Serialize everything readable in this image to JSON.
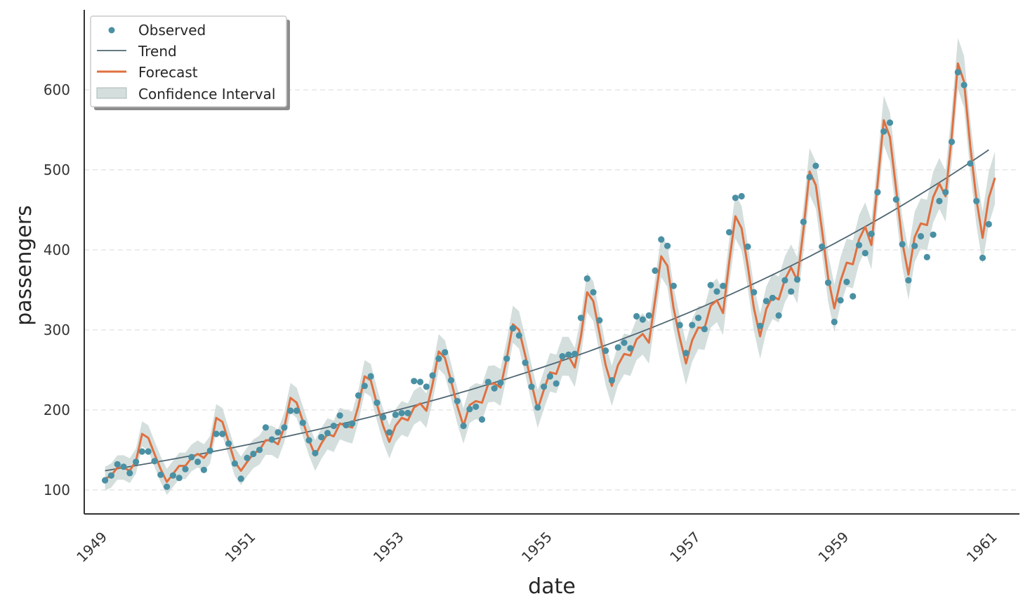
{
  "chart_data": {
    "type": "line",
    "xlabel": "date",
    "ylabel": "passengers",
    "xlim": [
      1948.72,
      1961.33
    ],
    "ylim": [
      70,
      700
    ],
    "x_ticks": [
      {
        "value": 1949,
        "label": "1949"
      },
      {
        "value": 1951,
        "label": "1951"
      },
      {
        "value": 1953,
        "label": "1953"
      },
      {
        "value": 1955,
        "label": "1955"
      },
      {
        "value": 1957,
        "label": "1957"
      },
      {
        "value": 1959,
        "label": "1959"
      },
      {
        "value": 1961,
        "label": "1961"
      }
    ],
    "y_ticks": [
      100,
      200,
      300,
      400,
      500,
      600
    ],
    "grid": "y-dashed",
    "legend_position": "top-left",
    "legend": [
      {
        "label": "Observed",
        "kind": "marker"
      },
      {
        "label": "Trend",
        "kind": "line"
      },
      {
        "label": "Forecast",
        "kind": "line"
      },
      {
        "label": "Confidence Interval",
        "kind": "patch"
      }
    ],
    "colors": {
      "observed": "#4a90a4",
      "trend": "#4f6773",
      "forecast": "#e07040",
      "confidence": "#c3d2d0",
      "axis": "#333333",
      "grid": "#e6e6e6"
    },
    "x_start": "1949-01",
    "x_step_months": 1,
    "series": [
      {
        "name": "Observed",
        "values": [
          112,
          118,
          132,
          129,
          121,
          135,
          148,
          148,
          136,
          119,
          104,
          118,
          115,
          126,
          141,
          135,
          125,
          149,
          170,
          170,
          158,
          133,
          114,
          140,
          145,
          150,
          178,
          163,
          172,
          178,
          199,
          199,
          184,
          162,
          146,
          166,
          171,
          180,
          193,
          181,
          183,
          218,
          230,
          242,
          209,
          191,
          172,
          194,
          196,
          196,
          236,
          235,
          229,
          243,
          264,
          272,
          237,
          211,
          180,
          201,
          204,
          188,
          235,
          227,
          234,
          264,
          302,
          293,
          259,
          229,
          203,
          229,
          242,
          233,
          267,
          269,
          270,
          315,
          364,
          347,
          312,
          274,
          237,
          278,
          284,
          277,
          317,
          313,
          318,
          374,
          413,
          405,
          355,
          306,
          271,
          306,
          315,
          301,
          356,
          348,
          355,
          422,
          465,
          467,
          404,
          347,
          305,
          336,
          340,
          318,
          362,
          348,
          363,
          435,
          491,
          505,
          404,
          359,
          310,
          337,
          360,
          342,
          406,
          396,
          420,
          472,
          548,
          559,
          463,
          407,
          362,
          405,
          417,
          391,
          419,
          461,
          472,
          535,
          622,
          606,
          508,
          461,
          390,
          432
        ]
      },
      {
        "name": "Trend",
        "x_range": [
          "1949-01",
          "1960-12"
        ],
        "start": 124,
        "end": 525
      },
      {
        "name": "Forecast",
        "values": [
          114,
          118,
          128,
          128,
          124,
          136,
          170,
          165,
          145,
          126,
          110,
          120,
          130,
          130,
          140,
          145,
          140,
          150,
          190,
          185,
          160,
          135,
          124,
          135,
          145,
          150,
          162,
          162,
          157,
          178,
          215,
          209,
          186,
          162,
          143,
          158,
          170,
          167,
          183,
          180,
          178,
          205,
          242,
          237,
          207,
          180,
          160,
          180,
          190,
          187,
          203,
          208,
          199,
          232,
          273,
          265,
          236,
          205,
          180,
          206,
          211,
          209,
          232,
          233,
          228,
          264,
          307,
          300,
          268,
          233,
          201,
          225,
          247,
          245,
          267,
          267,
          253,
          292,
          347,
          336,
          296,
          256,
          230,
          256,
          270,
          268,
          288,
          295,
          284,
          337,
          392,
          380,
          327,
          290,
          258,
          287,
          303,
          302,
          330,
          337,
          321,
          385,
          442,
          427,
          380,
          327,
          292,
          326,
          342,
          338,
          363,
          378,
          362,
          425,
          498,
          481,
          425,
          365,
          327,
          361,
          384,
          382,
          413,
          429,
          406,
          483,
          562,
          541,
          476,
          410,
          369,
          416,
          433,
          431,
          466,
          483,
          467,
          542,
          633,
          610,
          530,
          463,
          415,
          465,
          490
        ]
      },
      {
        "name": "Confidence Interval",
        "half_width_start": 15,
        "half_width_end": 33
      }
    ]
  }
}
